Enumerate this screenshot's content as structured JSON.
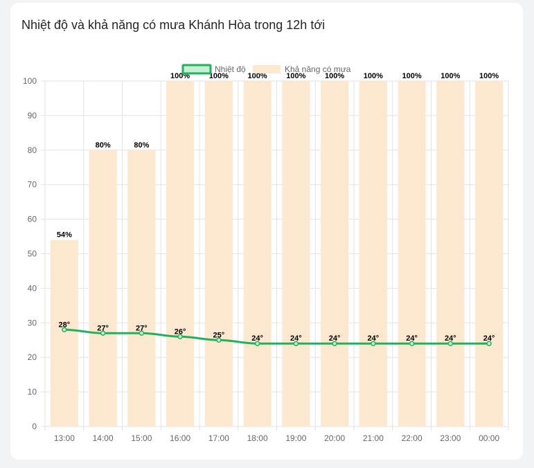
{
  "title": "Nhiệt độ và khả năng có mưa Khánh Hòa trong 12h tới",
  "colors": {
    "temperature_line": "#21b15a",
    "temperature_fill": "#c6f0d5",
    "rain_bar": "#fce8cf",
    "grid": "#e2e2e2",
    "axis_text": "#666666"
  },
  "chart_data": {
    "type": "bar",
    "title": "Nhiệt độ và khả năng có mưa Khánh Hòa trong 12h tới",
    "categories": [
      "13:00",
      "14:00",
      "15:00",
      "16:00",
      "17:00",
      "18:00",
      "19:00",
      "20:00",
      "21:00",
      "22:00",
      "23:00",
      "00:00"
    ],
    "ylim": [
      0,
      100
    ],
    "yticks": [
      0,
      10,
      20,
      30,
      40,
      50,
      60,
      70,
      80,
      90,
      100
    ],
    "grid": true,
    "legend_position": "top",
    "series": [
      {
        "name": "Nhiệt độ",
        "type": "line",
        "values": [
          28,
          27,
          27,
          26,
          25,
          24,
          24,
          24,
          24,
          24,
          24,
          24
        ],
        "labels": [
          "28°",
          "27°",
          "27°",
          "26°",
          "25°",
          "24°",
          "24°",
          "24°",
          "24°",
          "24°",
          "24°",
          "24°"
        ]
      },
      {
        "name": "Khả năng có mưa",
        "type": "bar",
        "values": [
          54,
          80,
          80,
          100,
          100,
          100,
          100,
          100,
          100,
          100,
          100,
          100
        ],
        "labels": [
          "54%",
          "80%",
          "80%",
          "100%",
          "100%",
          "100%",
          "100%",
          "100%",
          "100%",
          "100%",
          "100%",
          "100%"
        ]
      }
    ]
  }
}
